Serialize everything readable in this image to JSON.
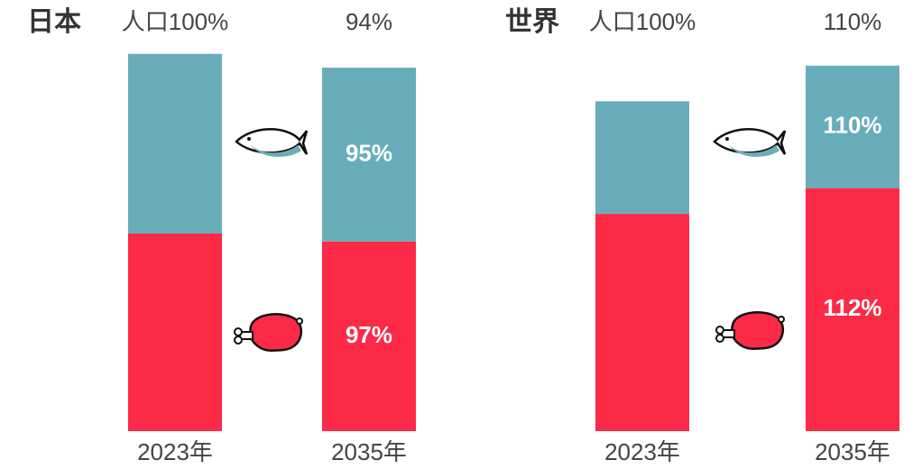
{
  "chart_data": [
    {
      "type": "stacked_bar",
      "title": "日本",
      "categories": [
        "2023年",
        "2035年"
      ],
      "top_labels": [
        "人口100%",
        "94%"
      ],
      "series": [
        {
          "color": "#fc2a46",
          "values": [
            100,
            96
          ],
          "labels": [
            null,
            "97%"
          ]
        },
        {
          "color": "#68adb9",
          "values": [
            91,
            88
          ],
          "labels": [
            null,
            "95%"
          ]
        }
      ],
      "ylim": [
        0,
        200
      ]
    },
    {
      "type": "stacked_bar",
      "title": "世界",
      "categories": [
        "2023年",
        "2035年"
      ],
      "top_labels": [
        "人口100%",
        "110%"
      ],
      "series": [
        {
          "color": "#fc2a46",
          "values": [
            110,
            123
          ],
          "labels": [
            null,
            "112%"
          ]
        },
        {
          "color": "#68adb9",
          "values": [
            57,
            62
          ],
          "labels": [
            null,
            "110%"
          ]
        }
      ],
      "ylim": [
        0,
        200
      ]
    }
  ]
}
